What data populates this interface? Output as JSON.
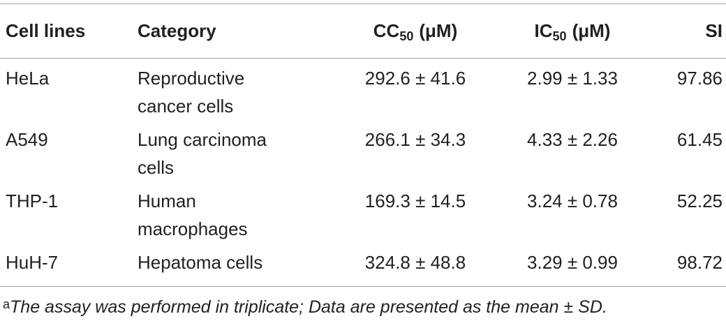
{
  "table": {
    "header": [
      "Cell lines",
      "Category",
      {
        "main": "CC",
        "sub": "50",
        "unit": "(μM)"
      },
      {
        "main": "IC",
        "sub": "50",
        "unit": "(μM)"
      },
      "SI"
    ],
    "rows": [
      [
        "HeLa",
        "Reproductive cancer cells",
        "292.6 ± 41.6",
        "2.99 ± 1.33",
        "97.86"
      ],
      [
        "A549",
        "Lung carcinoma cells",
        "266.1 ± 34.3",
        "4.33 ± 2.26",
        "61.45"
      ],
      [
        "THP-1",
        "Human macrophages",
        "169.3 ± 14.5",
        "3.24 ± 0.78",
        "52.25"
      ],
      [
        "HuH-7",
        "Hepatoma cells",
        "324.8 ± 48.8",
        "3.29 ± 0.99",
        "98.72"
      ]
    ],
    "footnote": {
      "marker": "a",
      "text": "The assay was performed in triplicate; Data are presented as the mean ± SD."
    }
  }
}
